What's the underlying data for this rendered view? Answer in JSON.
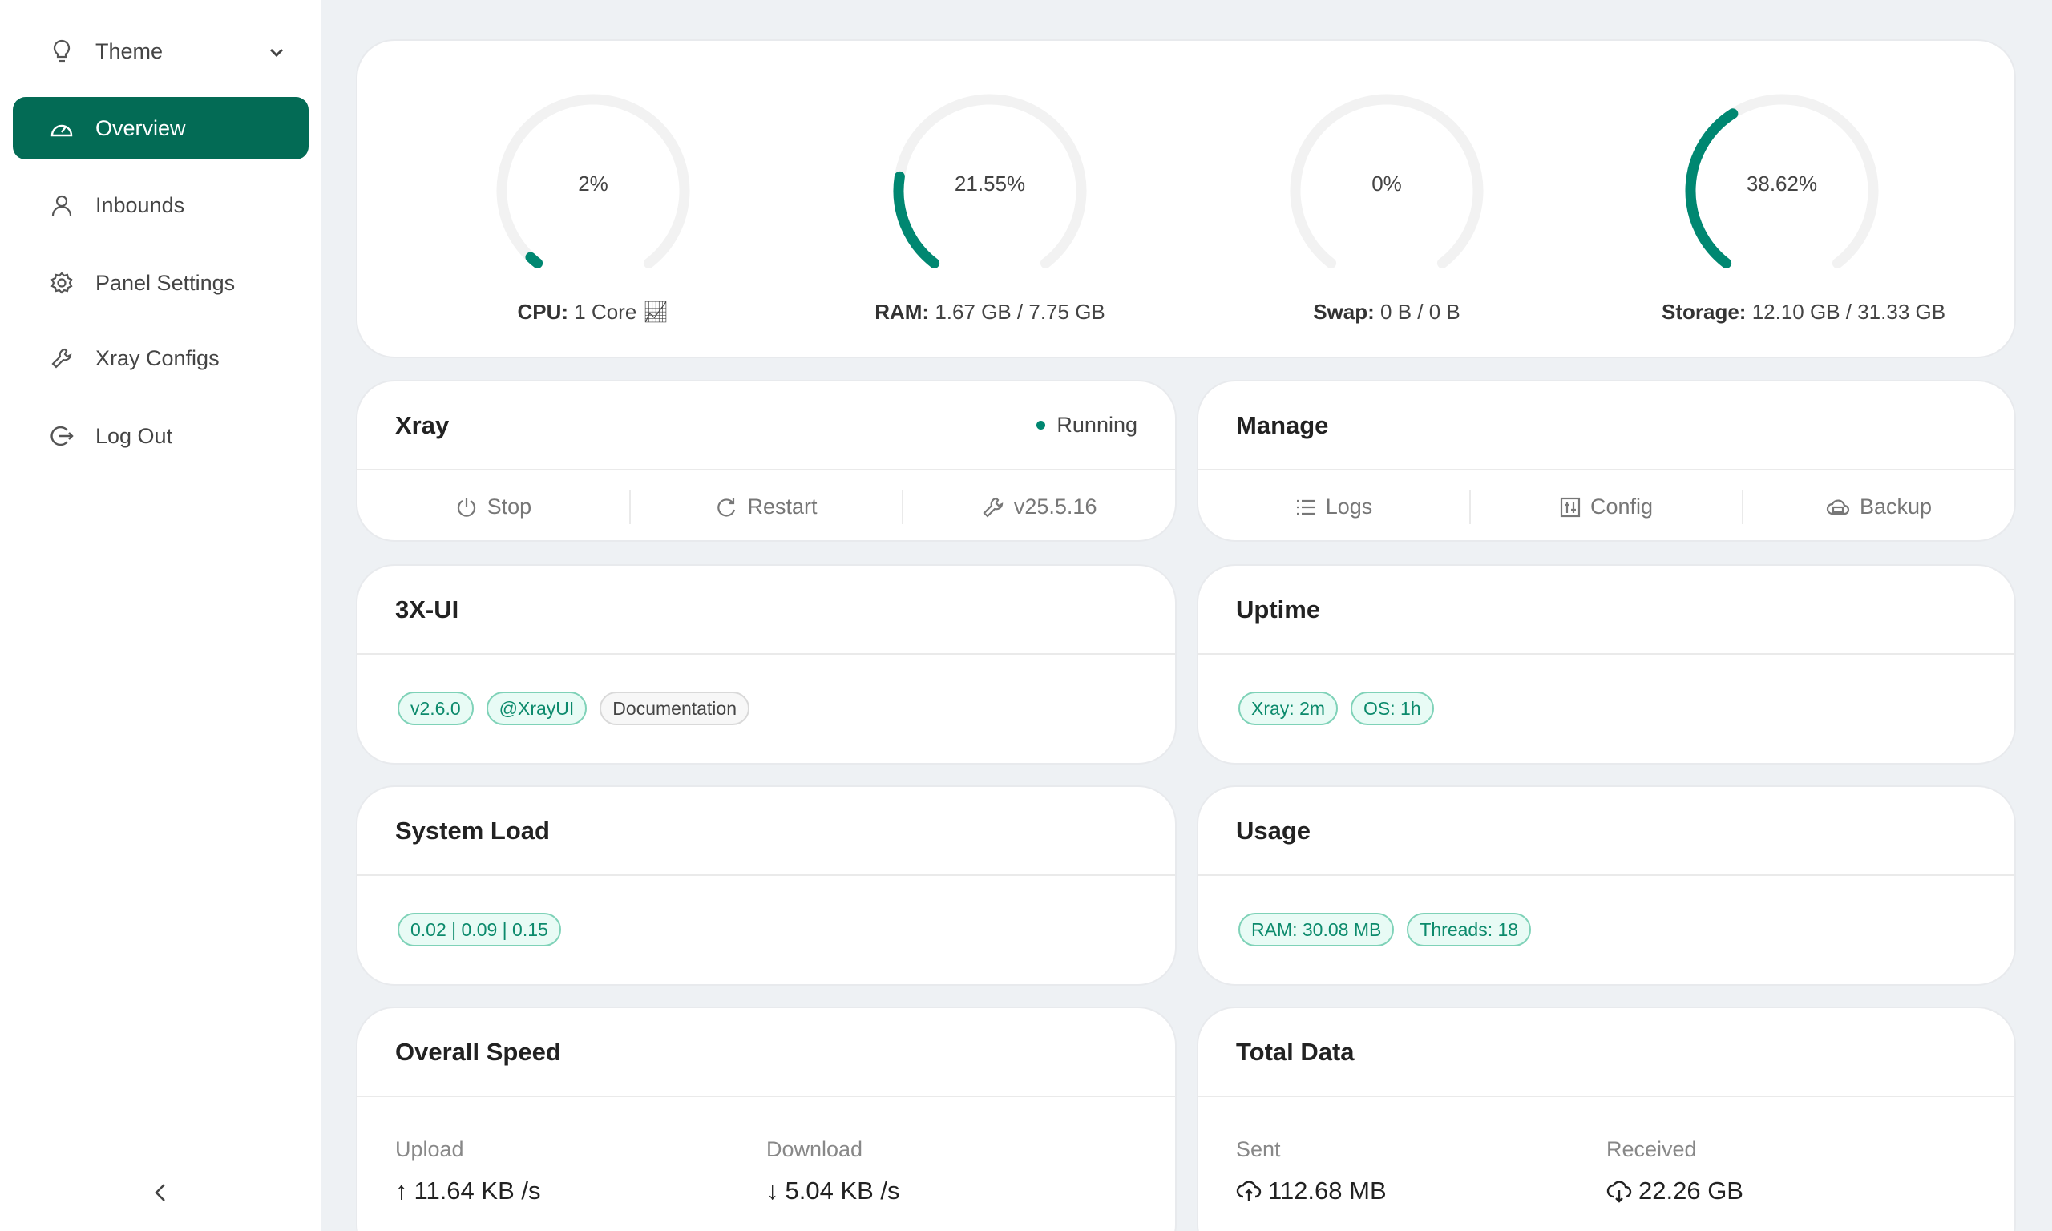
{
  "sidebar": {
    "theme": "Theme",
    "items": [
      {
        "label": "Overview",
        "active": true
      },
      {
        "label": "Inbounds"
      },
      {
        "label": "Panel Settings"
      },
      {
        "label": "Xray Configs"
      },
      {
        "label": "Log Out"
      }
    ]
  },
  "accent": "#036b55",
  "gauge_color": "#008771",
  "gauges": [
    {
      "percent": 2,
      "percent_text": "2%",
      "label": "CPU:",
      "value": "1 Core"
    },
    {
      "percent": 21.55,
      "percent_text": "21.55%",
      "label": "RAM:",
      "value": "1.67 GB / 7.75 GB"
    },
    {
      "percent": 0,
      "percent_text": "0%",
      "label": "Swap:",
      "value": "0 B / 0 B"
    },
    {
      "percent": 38.62,
      "percent_text": "38.62%",
      "label": "Storage:",
      "value": "12.10 GB / 31.33 GB"
    }
  ],
  "xray": {
    "title": "Xray",
    "status": "Running",
    "stop": "Stop",
    "restart": "Restart",
    "version": "v25.5.16"
  },
  "manage": {
    "title": "Manage",
    "logs": "Logs",
    "config": "Config",
    "backup": "Backup"
  },
  "panel": {
    "title": "3X-UI",
    "tags": [
      "v2.6.0",
      "@XrayUI",
      "Documentation"
    ]
  },
  "uptime": {
    "title": "Uptime",
    "tags": [
      "Xray: 2m",
      "OS: 1h"
    ]
  },
  "load": {
    "title": "System Load",
    "tags": [
      "0.02 | 0.09 | 0.15"
    ]
  },
  "usage": {
    "title": "Usage",
    "tags": [
      "RAM: 30.08 MB",
      "Threads: 18"
    ]
  },
  "speed": {
    "title": "Overall Speed",
    "upload_label": "Upload",
    "upload": "11.64 KB /s",
    "download_label": "Download",
    "download": "5.04 KB /s"
  },
  "total": {
    "title": "Total Data",
    "sent_label": "Sent",
    "sent": "112.68 MB",
    "received_label": "Received",
    "received": "22.26 GB"
  }
}
